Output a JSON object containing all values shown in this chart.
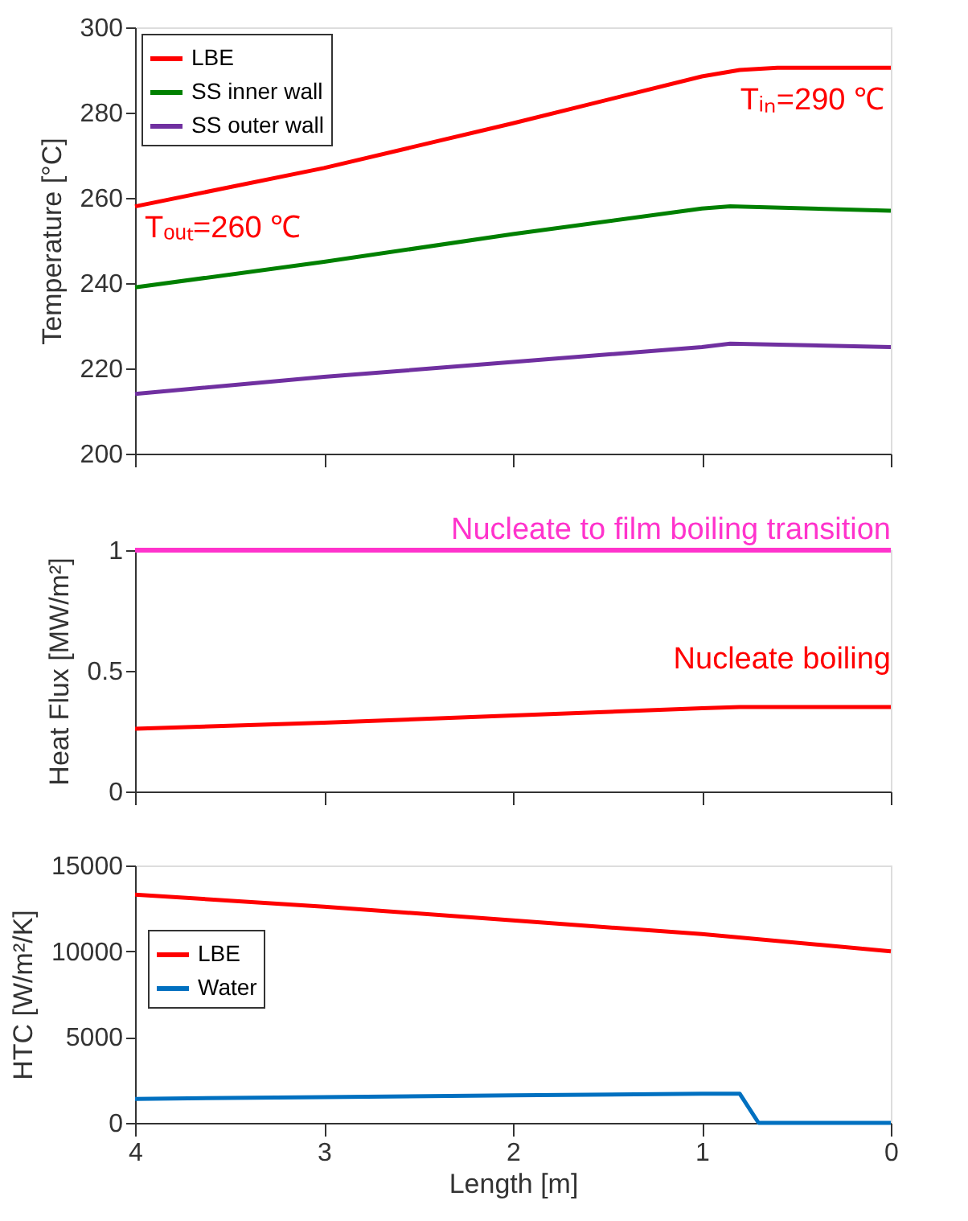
{
  "chart_data": [
    {
      "type": "line",
      "ylabel": "Temperature [°C]",
      "xlim": [
        4,
        0
      ],
      "xticks": [
        4,
        3,
        2,
        1,
        0
      ],
      "ylim": [
        200,
        300
      ],
      "yticks": [
        200,
        220,
        240,
        260,
        280,
        300
      ],
      "tick_labels": "y",
      "legend": "top left",
      "grid": false,
      "marker": "none",
      "line_style": "solid",
      "series": [
        {
          "name": "LBE",
          "color": "#ff0000",
          "x": [
            4,
            3,
            2,
            1,
            0.8,
            0.6,
            0
          ],
          "values": [
            258,
            267,
            277.5,
            288.5,
            290,
            290.5,
            290.5
          ]
        },
        {
          "name": "SS inner wall",
          "color": "#008000",
          "x": [
            4,
            3,
            2,
            1,
            0.85,
            0
          ],
          "values": [
            239,
            245,
            251.5,
            257.5,
            258,
            257
          ]
        },
        {
          "name": "SS outer wall",
          "color": "#7030a0",
          "x": [
            4,
            3,
            2,
            1,
            0.85,
            0
          ],
          "values": [
            214,
            218,
            221.5,
            225,
            225.8,
            225
          ]
        }
      ],
      "annotations": [
        "Tᵢₙ=290 ℃",
        "Tₒᵤₜ=260 ℃"
      ]
    },
    {
      "type": "line",
      "ylabel": "Heat Flux [MW/m²]",
      "xlim": [
        4,
        0
      ],
      "xticks": [
        4,
        3,
        2,
        1,
        0
      ],
      "ylim": [
        0,
        1
      ],
      "yticks": [
        0,
        0.5,
        1
      ],
      "tick_labels": "y",
      "legend": false,
      "grid": false,
      "marker": "none",
      "line_style": "solid",
      "series": [
        {
          "name": "Nucleate boiling",
          "color": "#ff0000",
          "x": [
            4,
            3,
            2,
            1,
            0.8,
            0
          ],
          "values": [
            0.26,
            0.285,
            0.315,
            0.345,
            0.35,
            0.35
          ]
        }
      ],
      "ref_lines": [
        {
          "axis": "y",
          "value": 1,
          "label": "Nucleate to film boiling transition",
          "color": "#ff33cc"
        }
      ]
    },
    {
      "type": "line",
      "xlabel": "Length [m]",
      "ylabel": "HTC [W/m²/K]",
      "xlim": [
        4,
        0
      ],
      "xticks": [
        4,
        3,
        2,
        1,
        0
      ],
      "ylim": [
        0,
        15000
      ],
      "yticks": [
        0,
        5000,
        10000,
        15000
      ],
      "legend": "left",
      "grid": false,
      "marker": "none",
      "line_style": "solid",
      "series": [
        {
          "name": "LBE",
          "color": "#ff0000",
          "x": [
            4,
            3,
            2,
            1,
            0
          ],
          "values": [
            13300,
            12600,
            11800,
            11000,
            10000
          ]
        },
        {
          "name": "Water",
          "color": "#0070c0",
          "x": [
            4,
            3,
            2,
            1,
            0.8,
            0.7,
            0
          ],
          "values": [
            1400,
            1500,
            1600,
            1700,
            1700,
            0,
            0
          ]
        }
      ]
    }
  ]
}
